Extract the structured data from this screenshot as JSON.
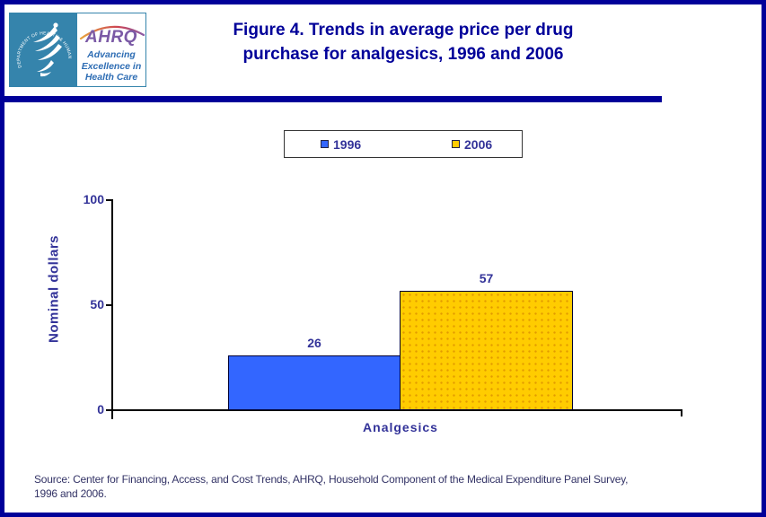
{
  "header": {
    "logo": {
      "hhs_ring_text": "DEPARTMENT OF HEALTH & HUMAN SERVICES • USA",
      "ahrq_acronym": "AHRQ",
      "ahrq_tagline": "Advancing Excellence in Health Care"
    },
    "title_lines": [
      "Figure 4. Trends in average price per drug",
      "purchase for analgesics, 1996 and 2006"
    ]
  },
  "chart_data": {
    "type": "bar",
    "title": "Figure 4. Trends in average price per drug purchase for analgesics, 1996 and 2006",
    "categories": [
      "Analgesics"
    ],
    "series": [
      {
        "name": "1996",
        "values": [
          26
        ],
        "color": "#3366FF",
        "pattern": "solid"
      },
      {
        "name": "2006",
        "values": [
          57
        ],
        "color": "#FFCC00",
        "pattern": "dots"
      }
    ],
    "ylabel": "Nominal dollars",
    "xlabel": "",
    "ylim": [
      0,
      100
    ],
    "yticks": [
      0,
      50,
      100
    ],
    "grid": false,
    "legend_position": "top-center",
    "value_labels_shown": true
  },
  "footer": {
    "source_lines": [
      "Source: Center for Financing, Access, and Cost Trends, AHRQ, Household Component of the Medical Expenditure Panel Survey,",
      "1996 and 2006."
    ]
  },
  "colors": {
    "page_border": "#000099",
    "divider_bar": "#000099",
    "title_text": "#000099",
    "chart_text": "#333399",
    "axis_line": "#000000",
    "bar_1996": "#3366FF",
    "bar_2006": "#FFCC00",
    "bar_2006_dots": "#E39B00",
    "source_text": "#333366",
    "hhs_seal_bg": "#3584AC",
    "ahrq_purple": "#7B5AA6",
    "ahrq_blue": "#2E6DB4"
  }
}
